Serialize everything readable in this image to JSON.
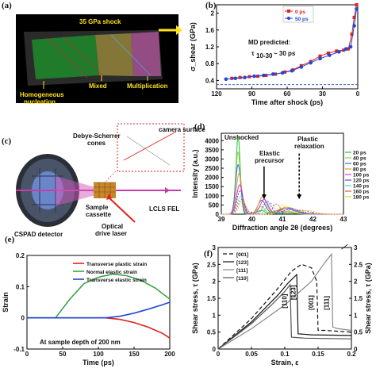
{
  "panels": {
    "a": {
      "label": "(a)",
      "title": "35 GPa shock",
      "labels": [
        "Homogeneous",
        "nucleation",
        "Mixed",
        "Multiplication"
      ],
      "bg": "#000000",
      "text_color": "#ffe21a"
    },
    "b": {
      "label": "(b)",
      "annotation_1": "MD predicted:",
      "annotation_2": "τ",
      "annotation_sub": "10-30",
      "annotation_3": "~ 30 ps",
      "annotation_color": "#e0211b"
    },
    "c": {
      "label": "(c)",
      "labels": {
        "debye": "Debye-Scherrer",
        "cones": "cones",
        "sample": "Sample",
        "cassette": "cassette",
        "cspad": "CSPAD detector",
        "lcls": "LCLS FEL",
        "optical": "Optical",
        "drive": "drive laser",
        "camera": "camera surface"
      }
    },
    "d": {
      "label": "(d)",
      "annotations": {
        "unshocked": "Unshocked",
        "elastic1": "Elastic",
        "elastic2": "precursor",
        "plastic1": "Plastic",
        "plastic2": "relaxation"
      }
    },
    "e": {
      "label": "(e)",
      "annotation": "At sample depth of 200 nm"
    },
    "f": {
      "label": "(f)",
      "inline_labels": [
        "[110]",
        "[123]",
        "[001]",
        "[111]"
      ]
    }
  },
  "chart_data": [
    {
      "panel": "b",
      "type": "line",
      "xlabel": "Time after shock (ps)",
      "ylabel": "σ_shear (GPa)",
      "xlim": [
        120,
        0
      ],
      "ylim": [
        0.2,
        2.2
      ],
      "xticks": [
        120,
        90,
        60,
        30,
        0
      ],
      "yticks": [
        0.4,
        0.8,
        1.2,
        1.6,
        2.0
      ],
      "reference_line": 0.3,
      "series": [
        {
          "name": "0 ps",
          "color": "#e0211b",
          "x": [
            107,
            100,
            92,
            85,
            78,
            70,
            62,
            55,
            48,
            40,
            32,
            25,
            18,
            12,
            8,
            5,
            3,
            1
          ],
          "y": [
            0.45,
            0.47,
            0.49,
            0.5,
            0.52,
            0.55,
            0.6,
            0.65,
            0.75,
            0.85,
            0.98,
            1.05,
            1.1,
            1.12,
            1.15,
            1.5,
            1.9,
            2.2
          ]
        },
        {
          "name": "50 ps",
          "color": "#2347d6",
          "x": [
            112,
            104,
            96,
            88,
            80,
            72,
            64,
            56,
            48,
            40,
            32,
            24,
            16,
            10,
            6,
            3,
            1
          ],
          "y": [
            0.43,
            0.45,
            0.47,
            0.5,
            0.52,
            0.55,
            0.58,
            0.63,
            0.72,
            0.82,
            0.92,
            1.0,
            1.08,
            1.15,
            1.2,
            1.7,
            2.1
          ]
        }
      ]
    },
    {
      "panel": "d",
      "type": "line",
      "xlabel": "Diffraction angle 2θ (degrees)",
      "ylabel": "Intensity (a.u.)",
      "xlim": [
        39,
        43
      ],
      "ylim": [
        0,
        4400
      ],
      "xticks": [
        39,
        40,
        41,
        42,
        43
      ],
      "yticks": [
        0,
        500,
        1000,
        1500,
        2000,
        2500,
        3000,
        3500,
        4000
      ],
      "series": [
        {
          "name": "20 ps",
          "color": "#2cbf3a",
          "peak": 39.55,
          "height": 4200,
          "width": 0.1,
          "p2": 40.3,
          "h2": 200
        },
        {
          "name": "40 ps",
          "color": "#8fd63a",
          "peak": 39.55,
          "height": 3400,
          "width": 0.11,
          "p2": 40.3,
          "h2": 400
        },
        {
          "name": "60 ps",
          "color": "#3b6be0",
          "peak": 39.55,
          "height": 2700,
          "width": 0.12,
          "p2": 40.32,
          "h2": 750
        },
        {
          "name": "80 ps",
          "color": "#e0a21c",
          "peak": 39.58,
          "height": 2200,
          "width": 0.13,
          "p2": 40.35,
          "h2": 950
        },
        {
          "name": "100 ps",
          "color": "#d63ad6",
          "peak": 39.6,
          "height": 1600,
          "width": 0.14,
          "p2": 40.4,
          "h2": 800
        },
        {
          "name": "120 ps",
          "color": "#7a3ad6",
          "peak": 39.62,
          "height": 1300,
          "width": 0.15,
          "p2": 40.5,
          "h2": 700
        },
        {
          "name": "140 ps",
          "color": "#3ad6c0",
          "peak": 39.65,
          "height": 1000,
          "width": 0.16,
          "p2": 40.6,
          "h2": 600
        },
        {
          "name": "160 ps",
          "color": "#e05a3a",
          "peak": 39.67,
          "height": 800,
          "width": 0.17,
          "p2": 40.8,
          "h2": 550
        },
        {
          "name": "180 ps",
          "color": "#e0d13a",
          "peak": 39.7,
          "height": 650,
          "width": 0.18,
          "p2": 41.0,
          "h2": 500
        }
      ]
    },
    {
      "panel": "e",
      "type": "line",
      "xlabel": "Time (ps)",
      "ylabel": "Strain",
      "xlim": [
        0,
        200
      ],
      "ylim": [
        -0.1,
        0.2
      ],
      "xticks": [
        0,
        50,
        100,
        150,
        200
      ],
      "yticks": [
        -0.1,
        0,
        0.1,
        0.2
      ],
      "series": [
        {
          "name": "Transverse plastic strain",
          "color": "#e0211b",
          "x": [
            0,
            50,
            110,
            130,
            150,
            170,
            190,
            200
          ],
          "y": [
            0,
            0,
            0,
            -0.005,
            -0.015,
            -0.03,
            -0.05,
            -0.065
          ]
        },
        {
          "name": "Normal elastic strain",
          "color": "#3aa34a",
          "x": [
            0,
            40,
            60,
            80,
            100,
            120,
            140,
            160,
            180,
            200
          ],
          "y": [
            0,
            0,
            0.06,
            0.11,
            0.13,
            0.14,
            0.135,
            0.12,
            0.095,
            0.06
          ]
        },
        {
          "name": "Transverse elastic strain",
          "color": "#2347d6",
          "x": [
            0,
            110,
            130,
            150,
            170,
            190,
            200
          ],
          "y": [
            0,
            0,
            0.005,
            0.015,
            0.028,
            0.042,
            0.05
          ]
        }
      ]
    },
    {
      "panel": "f",
      "type": "line",
      "xlabel": "Strain, ε",
      "ylabel": "Shear stress, τ (GPa)",
      "ylabel_right": "Shear stress, τ (GPa)",
      "xlim": [
        0,
        0.2
      ],
      "ylim": [
        0,
        3
      ],
      "xticks": [
        0,
        0.05,
        0.1,
        0.15,
        0.2
      ],
      "yticks": [
        0,
        0.5,
        1,
        1.5,
        2,
        2.5,
        3
      ],
      "series": [
        {
          "name": "[001]",
          "dash": "5,3",
          "color": "#111111",
          "x": [
            0,
            0.05,
            0.09,
            0.11,
            0.125,
            0.14,
            0.148,
            0.15,
            0.16,
            0.2
          ],
          "y": [
            0,
            0.9,
            1.8,
            2.3,
            2.5,
            2.4,
            2.0,
            0.55,
            0.55,
            0.5
          ]
        },
        {
          "name": "[123]",
          "dash": "",
          "color": "#111111",
          "x": [
            0,
            0.05,
            0.09,
            0.105,
            0.118,
            0.12,
            0.14,
            0.2
          ],
          "y": [
            0,
            0.8,
            1.6,
            1.95,
            2.2,
            0.45,
            0.42,
            0.4
          ]
        },
        {
          "name": "[111]",
          "dash": "",
          "color": "#888888",
          "x": [
            0,
            0.05,
            0.1,
            0.14,
            0.16,
            0.17,
            0.172,
            0.18,
            0.2
          ],
          "y": [
            0,
            0.6,
            1.3,
            2.0,
            2.55,
            2.8,
            0.65,
            0.6,
            0.55
          ]
        },
        {
          "name": "[110]",
          "dash": "",
          "color": "#555555",
          "x": [
            0,
            0.05,
            0.08,
            0.1,
            0.108,
            0.11,
            0.13,
            0.2
          ],
          "y": [
            0,
            0.75,
            1.3,
            1.7,
            1.9,
            0.35,
            0.32,
            0.3
          ]
        }
      ]
    }
  ]
}
